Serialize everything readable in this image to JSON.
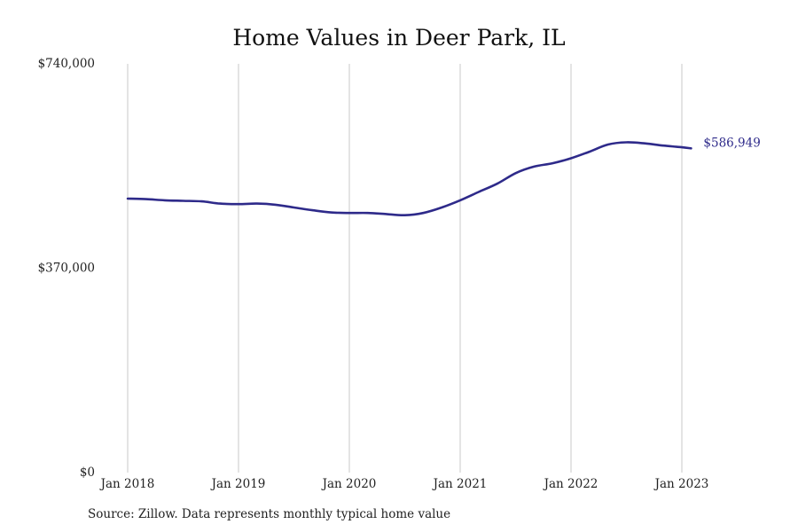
{
  "chart_data": {
    "type": "line",
    "title": "Home Values in Deer Park, IL",
    "xlabel": "",
    "ylabel": "",
    "ylim": [
      0,
      740000
    ],
    "y_ticks": [
      {
        "value": 0,
        "label": "$0"
      },
      {
        "value": 370000,
        "label": "$370,000"
      },
      {
        "value": 740000,
        "label": "$740,000"
      }
    ],
    "x_ticks": [
      {
        "value": 2018.0,
        "label": "Jan 2018"
      },
      {
        "value": 2019.0,
        "label": "Jan 2019"
      },
      {
        "value": 2020.0,
        "label": "Jan 2020"
      },
      {
        "value": 2021.0,
        "label": "Jan 2021"
      },
      {
        "value": 2022.0,
        "label": "Jan 2022"
      },
      {
        "value": 2023.0,
        "label": "Jan 2023"
      }
    ],
    "grid": {
      "vertical": true,
      "horizontal": false
    },
    "line_color": "#2e2a8a",
    "end_label": "$586,949",
    "series": [
      {
        "x": [
          "2018-01",
          "2018-03",
          "2018-05",
          "2018-07",
          "2018-09",
          "2018-11",
          "2019-01",
          "2019-03",
          "2019-05",
          "2019-07",
          "2019-09",
          "2019-11",
          "2020-01",
          "2020-03",
          "2020-05",
          "2020-07",
          "2020-09",
          "2020-11",
          "2021-01",
          "2021-03",
          "2021-05",
          "2021-07",
          "2021-09",
          "2021-11",
          "2022-01",
          "2022-03",
          "2022-05",
          "2022-07",
          "2022-09",
          "2022-11",
          "2023-01",
          "2023-02"
        ],
        "values": [
          496000,
          495000,
          493000,
          492000,
          491000,
          487000,
          486000,
          487000,
          485000,
          480000,
          475000,
          471000,
          470000,
          470000,
          468000,
          466000,
          470000,
          480000,
          493000,
          508000,
          523000,
          542000,
          554000,
          560000,
          569000,
          581000,
          594000,
          598000,
          596000,
          592000,
          589000,
          586949
        ]
      }
    ]
  },
  "footer": {
    "source": "Source: Zillow. Data represents monthly typical home value"
  }
}
